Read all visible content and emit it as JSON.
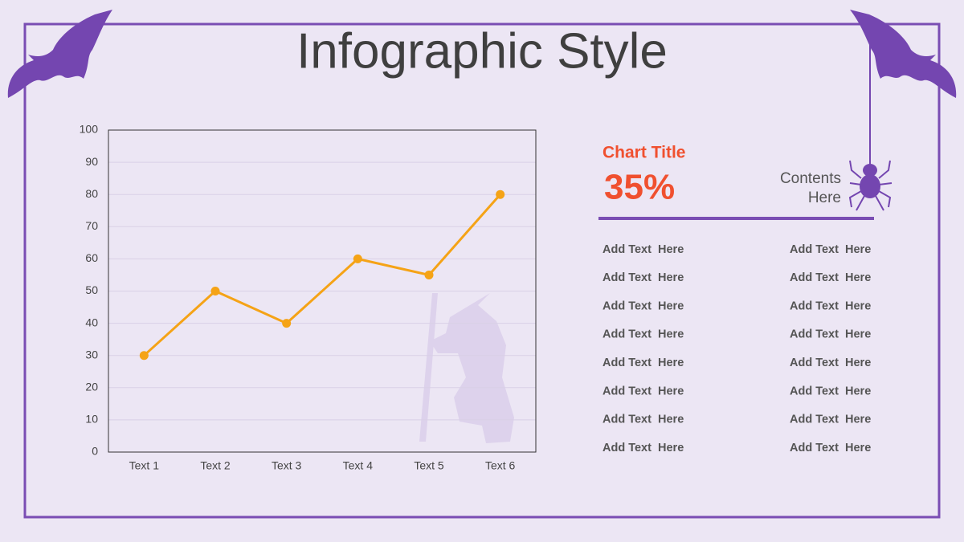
{
  "title": "Infographic Style",
  "chart_data": {
    "type": "line",
    "categories": [
      "Text 1",
      "Text 2",
      "Text 3",
      "Text 4",
      "Text 5",
      "Text 6"
    ],
    "values": [
      30,
      50,
      40,
      60,
      55,
      80
    ],
    "color": "#f5a316",
    "ylim": [
      0,
      100
    ],
    "yticks": [
      0,
      10,
      20,
      30,
      40,
      50,
      60,
      70,
      80,
      90,
      100
    ],
    "grid": true
  },
  "panel": {
    "title": "Chart Title",
    "stat": "35%",
    "contents": [
      "Contents",
      "Here"
    ],
    "items": [
      [
        "Add Text  Here",
        "Add Text  Here"
      ],
      [
        "Add Text  Here",
        "Add Text  Here"
      ],
      [
        "Add Text  Here",
        "Add Text  Here"
      ],
      [
        "Add Text  Here",
        "Add Text  Here"
      ],
      [
        "Add Text  Here",
        "Add Text  Here"
      ],
      [
        "Add Text  Here",
        "Add Text  Here"
      ],
      [
        "Add Text  Here",
        "Add Text  Here"
      ],
      [
        "Add Text  Here",
        "Add Text  Here"
      ]
    ]
  }
}
